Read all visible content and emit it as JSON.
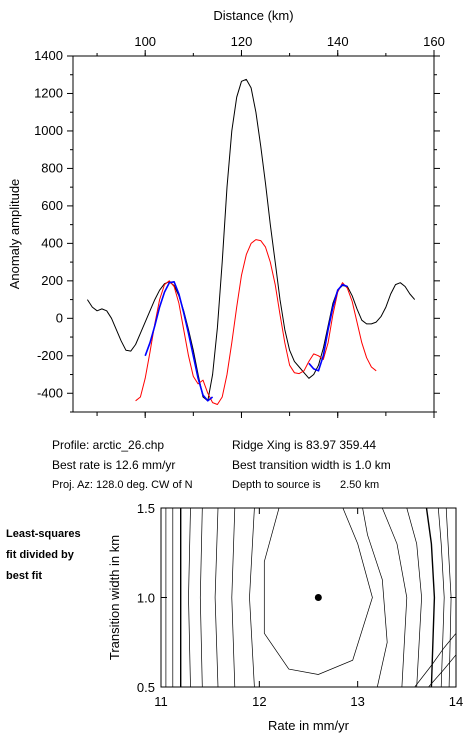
{
  "chart_data": [
    {
      "type": "line",
      "xlabel": "Distance (km)",
      "ylabel": "Anomaly amplitude",
      "xlim": [
        85,
        160
      ],
      "ylim": [
        -500,
        1400
      ],
      "x_ticks": [
        100,
        120,
        140,
        160
      ],
      "y_ticks": [
        -400,
        -200,
        0,
        200,
        400,
        600,
        800,
        1000,
        1200,
        1400
      ],
      "series": [
        {
          "color": "#000000",
          "x": [
            88,
            89,
            90,
            91,
            92,
            93,
            94,
            95,
            96,
            97,
            98,
            99,
            100,
            101,
            102,
            103,
            104,
            105,
            106,
            107,
            108,
            109,
            110,
            111,
            112,
            113,
            114,
            115,
            116,
            117,
            118,
            119,
            120,
            121,
            122,
            123,
            124,
            125,
            126,
            127,
            128,
            129,
            130,
            131,
            132,
            133,
            134,
            135,
            136,
            137,
            138,
            139,
            140,
            141,
            142,
            143,
            144,
            145,
            146,
            147,
            148,
            149,
            150,
            151,
            152,
            153,
            154,
            155,
            156
          ],
          "y": [
            100,
            60,
            40,
            50,
            40,
            0,
            -60,
            -120,
            -170,
            -175,
            -140,
            -80,
            -20,
            40,
            100,
            150,
            185,
            195,
            175,
            120,
            40,
            -60,
            -170,
            -300,
            -420,
            -440,
            -300,
            -50,
            300,
            700,
            1000,
            1180,
            1265,
            1275,
            1230,
            1100,
            920,
            720,
            500,
            300,
            100,
            -60,
            -170,
            -230,
            -260,
            -290,
            -320,
            -300,
            -250,
            -160,
            -40,
            80,
            150,
            175,
            170,
            120,
            50,
            -10,
            -30,
            -30,
            -20,
            10,
            60,
            130,
            180,
            190,
            170,
            130,
            100
          ]
        },
        {
          "color": "#ff0000",
          "x": [
            98,
            99,
            100,
            101,
            102,
            103,
            104,
            105,
            106,
            107,
            108,
            109,
            110,
            111,
            112,
            113,
            114,
            115,
            116,
            117,
            118,
            119,
            120,
            121,
            122,
            123,
            124,
            125,
            126,
            127,
            128,
            129,
            130,
            131,
            132,
            133,
            134,
            135,
            136,
            137,
            138,
            139,
            140,
            141,
            142,
            143,
            144,
            145,
            146,
            147,
            148
          ],
          "y": [
            -440,
            -420,
            -320,
            -180,
            -30,
            100,
            180,
            200,
            170,
            80,
            -60,
            -200,
            -310,
            -350,
            -330,
            -400,
            -450,
            -460,
            -420,
            -300,
            -130,
            60,
            230,
            340,
            400,
            420,
            415,
            380,
            300,
            180,
            20,
            -130,
            -250,
            -290,
            -295,
            -280,
            -230,
            -190,
            -200,
            -220,
            -130,
            20,
            140,
            190,
            160,
            90,
            -20,
            -130,
            -210,
            -260,
            -280
          ]
        },
        {
          "color": "#0000ff",
          "x": [
            100,
            101,
            102,
            103,
            104,
            105,
            106,
            107,
            108,
            109,
            110,
            111,
            112,
            113,
            114,
            134,
            135,
            136,
            137,
            138,
            139,
            140,
            141,
            142
          ],
          "y": [
            -200,
            -130,
            -40,
            60,
            140,
            190,
            195,
            130,
            30,
            -80,
            -200,
            -320,
            -410,
            -440,
            -420,
            -240,
            -270,
            -280,
            -200,
            -60,
            60,
            150,
            180,
            170
          ]
        }
      ]
    },
    {
      "type": "contour",
      "xlabel": "Rate in mm/yr",
      "ylabel": "Transition width in km",
      "xlim": [
        11,
        14
      ],
      "ylim": [
        0.5,
        1.5
      ],
      "x_ticks": [
        "11",
        "12",
        "13",
        "14"
      ],
      "y_ticks": [
        "0.5",
        "1.0",
        "1.5"
      ],
      "best_fit_point": {
        "x": 12.6,
        "y": 1.0
      },
      "contours": [
        {
          "x": [
            11.05,
            11.05,
            11.05
          ],
          "y": [
            0.5,
            1.0,
            1.5
          ],
          "bold": false
        },
        {
          "x": [
            11.12,
            11.12,
            11.12
          ],
          "y": [
            0.5,
            1.0,
            1.5
          ],
          "bold": false
        },
        {
          "x": [
            11.2,
            11.2,
            11.2
          ],
          "y": [
            0.5,
            1.0,
            1.5
          ],
          "bold": true
        },
        {
          "x": [
            11.3,
            11.28,
            11.3
          ],
          "y": [
            0.5,
            1.0,
            1.5
          ],
          "bold": false
        },
        {
          "x": [
            11.42,
            11.4,
            11.42
          ],
          "y": [
            0.5,
            1.0,
            1.5
          ],
          "bold": false
        },
        {
          "x": [
            11.58,
            11.55,
            11.58
          ],
          "y": [
            0.5,
            1.0,
            1.5
          ],
          "bold": false
        },
        {
          "x": [
            11.75,
            11.72,
            11.75
          ],
          "y": [
            0.5,
            1.0,
            1.5
          ],
          "bold": false
        },
        {
          "x": [
            11.95,
            11.9,
            11.95
          ],
          "y": [
            0.5,
            1.0,
            1.5
          ],
          "bold": false
        },
        {
          "x": [
            12.2,
            12.05,
            12.05,
            12.3,
            12.6,
            12.95,
            13.15,
            13.0,
            12.85,
            12.5,
            12.2
          ],
          "y": [
            1.5,
            1.2,
            0.8,
            0.6,
            0.57,
            0.65,
            1.0,
            1.3,
            1.5,
            1.5,
            1.5
          ],
          "bold": false
        },
        {
          "x": [
            13.2,
            13.3,
            13.25,
            13.1,
            13.05
          ],
          "y": [
            0.5,
            0.75,
            1.1,
            1.35,
            1.5
          ],
          "bold": false
        },
        {
          "x": [
            13.45,
            13.5,
            13.4,
            13.25
          ],
          "y": [
            0.5,
            1.0,
            1.3,
            1.5
          ],
          "bold": false
        },
        {
          "x": [
            13.6,
            13.65,
            13.6,
            13.5
          ],
          "y": [
            0.5,
            1.0,
            1.3,
            1.5
          ],
          "bold": false
        },
        {
          "x": [
            13.75,
            13.78,
            13.75,
            13.7
          ],
          "y": [
            0.5,
            1.0,
            1.3,
            1.5
          ],
          "bold": true
        },
        {
          "x": [
            13.85,
            13.88,
            13.85,
            13.82
          ],
          "y": [
            0.5,
            1.0,
            1.3,
            1.5
          ],
          "bold": false
        },
        {
          "x": [
            13.93,
            13.95,
            13.92,
            13.9
          ],
          "y": [
            0.5,
            1.0,
            1.3,
            1.5
          ],
          "bold": false
        },
        {
          "x": [
            13.58,
            13.75,
            13.88,
            14.0
          ],
          "y": [
            0.5,
            0.62,
            0.72,
            0.8
          ],
          "bold": false
        },
        {
          "x": [
            13.72,
            13.88,
            14.0
          ],
          "y": [
            0.5,
            0.6,
            0.68
          ],
          "bold": false
        }
      ]
    }
  ],
  "info": {
    "profile": "Profile: arctic_26.chp",
    "ridge": "Ridge Xing is 83.97 359.44",
    "best_rate": "Best rate is 12.6 mm/yr",
    "best_width": "Best transition width is 1.0 km",
    "proj_az": "Proj. Az: 128.0 deg. CW of N",
    "depth": "Depth to source is",
    "depth_value": "2.50 km"
  },
  "side_note": {
    "line1": "Least-squares",
    "line2": "fit divided by",
    "line3": "best fit"
  }
}
